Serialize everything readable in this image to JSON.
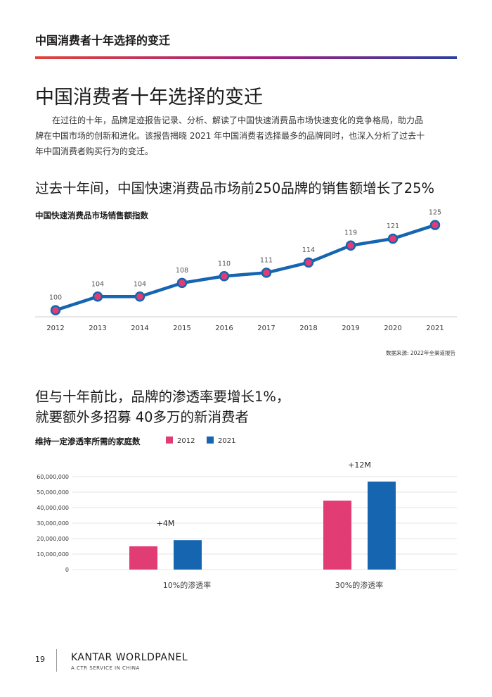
{
  "header": {
    "title": "中国消费者十年选择的变迁"
  },
  "page_title": "中国消费者十年选择的变迁",
  "intro": "在过往的十年，品牌足迹报告记录、分析、解读了中国快速消费品市场快速变化的竞争格局，助力品牌在中国市场的创新和进化。该报告揭晓 2021 年中国消费者选择最多的品牌同时，也深入分析了过去十年中国消费者购买行为的变迁。",
  "section1_heading": "过去十年间，中国快速消费品市场前250品牌的销售额增长了25%",
  "section2_heading": "但与十年前比，品牌的渗透率要增长1%，\n就要额外多招募 40多万的新消费者",
  "source_note": "数据来源: 2022年全渠道报告",
  "footer": {
    "page_number": "19",
    "brand": "KANTAR WORLDPANEL",
    "subtitle": "A CTR SERVICE IN CHINA"
  },
  "colors": {
    "line": "#1565b0",
    "point_fill": "#e13c73",
    "bar_2012": "#e13c73",
    "bar_2021": "#1565b0"
  },
  "chart_data": [
    {
      "type": "line",
      "title": "中国快速消费品市场销售额指数",
      "x": [
        "2012",
        "2013",
        "2014",
        "2015",
        "2016",
        "2017",
        "2018",
        "2019",
        "2020",
        "2021"
      ],
      "values": [
        100,
        104,
        104,
        108,
        110,
        111,
        114,
        119,
        121,
        125
      ],
      "ylim": [
        96,
        127
      ],
      "grid": false,
      "legend": "none"
    },
    {
      "type": "bar",
      "title": "维持一定渗透率所需的家庭数",
      "categories": [
        "10%的渗透率",
        "30%的渗透率"
      ],
      "series": [
        {
          "name": "2012",
          "values": [
            15000000,
            44500000
          ]
        },
        {
          "name": "2021",
          "values": [
            19000000,
            56800000
          ]
        }
      ],
      "annotations": [
        "+4M",
        "+12M"
      ],
      "yticks": [
        "0",
        "10,000,000",
        "20,000,000",
        "30,000,000",
        "40,000,000",
        "50,000,000",
        "60,000,000"
      ],
      "ylim": [
        0,
        60000000
      ],
      "grid": true,
      "legend": "top"
    }
  ]
}
